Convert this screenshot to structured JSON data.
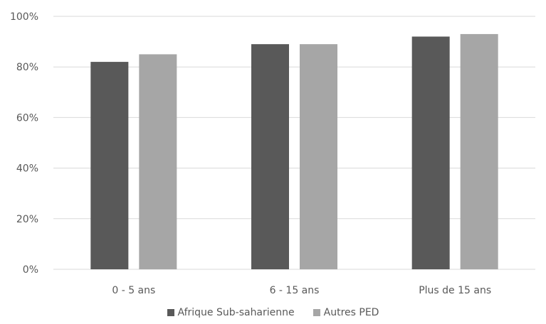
{
  "chart_data": {
    "type": "bar",
    "title": "",
    "xlabel": "",
    "ylabel": "",
    "categories": [
      "0 - 5 ans",
      "6 - 15 ans",
      "Plus de 15 ans"
    ],
    "series": [
      {
        "name": "Afrique Sub-saharienne",
        "color": "#595959",
        "values": [
          82,
          89,
          92
        ]
      },
      {
        "name": "Autres PED",
        "color": "#a6a6a6",
        "values": [
          85,
          89,
          93
        ]
      }
    ],
    "ylim": [
      0,
      100
    ],
    "y_ticks": [
      0,
      20,
      40,
      60,
      80,
      100
    ],
    "y_tick_labels": [
      "0%",
      "20%",
      "40%",
      "60%",
      "80%",
      "100%"
    ],
    "grid": true,
    "gridline_color": "#d9d9d9",
    "legend_position": "bottom"
  }
}
